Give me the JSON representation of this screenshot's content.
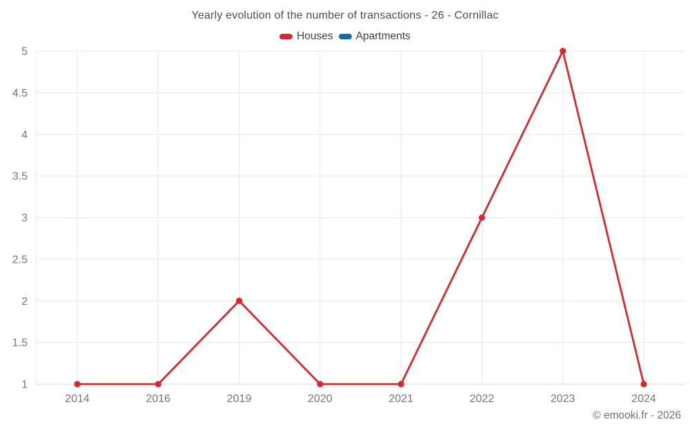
{
  "header": {
    "title": "Yearly evolution of the number of transactions - 26 - Cornillac"
  },
  "legend": {
    "items": [
      {
        "label": "Houses",
        "color": "#d4292e"
      },
      {
        "label": "Apartments",
        "color": "#10709f"
      }
    ]
  },
  "footer": {
    "copyright": "© emooki.fr - 2026"
  },
  "chart_data": {
    "type": "line",
    "title": "Yearly evolution of the number of transactions - 26 - Cornillac",
    "categories": [
      "2014",
      "2016",
      "2019",
      "2020",
      "2021",
      "2022",
      "2023",
      "2024"
    ],
    "series": [
      {
        "name": "Houses",
        "color": "#d4292e",
        "values": [
          1,
          1,
          2,
          1,
          1,
          3,
          5,
          1
        ]
      },
      {
        "name": "Apartments",
        "color": "#10709f",
        "values": []
      }
    ],
    "xlabel": "",
    "ylabel": "",
    "ylim": [
      1,
      5
    ],
    "ytick_step": 0.5,
    "ytick_labels": [
      "1",
      "1.5",
      "2",
      "2.5",
      "3",
      "3.5",
      "4",
      "4.5",
      "5"
    ],
    "grid": true,
    "legend_position": "top",
    "marker_radius": 4.6,
    "line_width": 2.8,
    "colors": {
      "grid": "#e7e7e7",
      "axis": "#d9d9d9",
      "tick_label": "#757575",
      "title": "#4c4c4c"
    }
  }
}
